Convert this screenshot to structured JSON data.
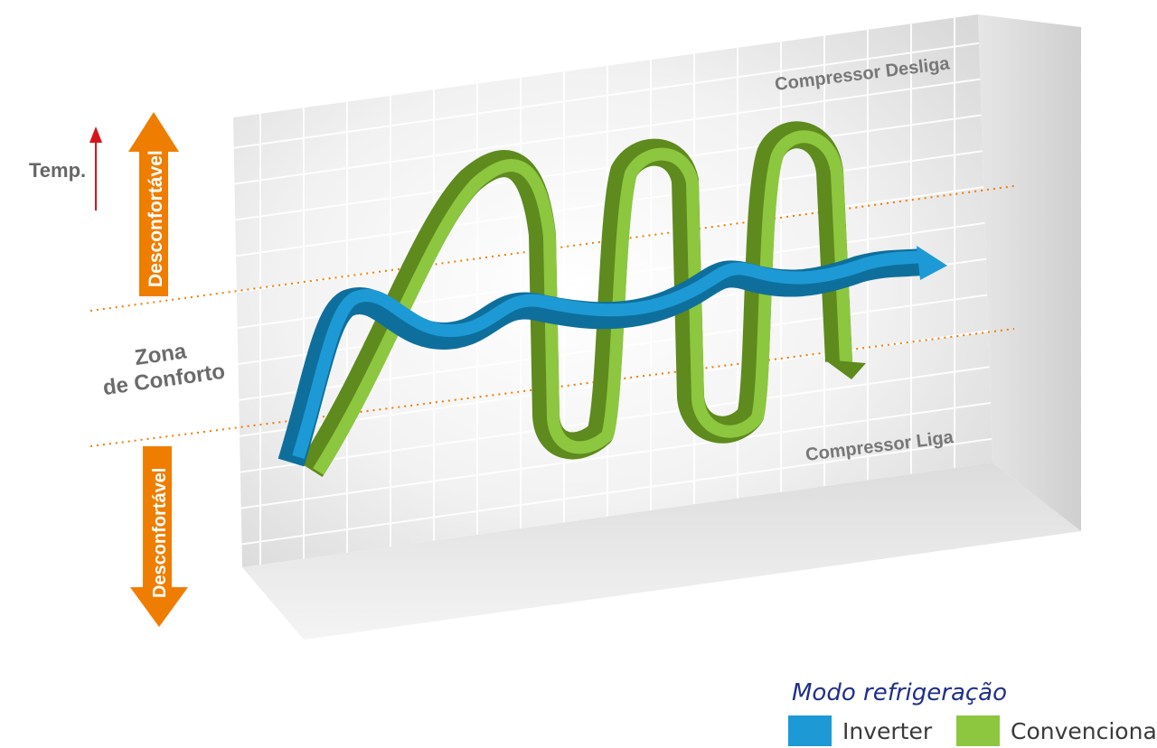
{
  "labels": {
    "temp": "Temp.",
    "uncomfortable_top": "Desconfortável",
    "uncomfortable_bottom": "Desconfortável",
    "comfort_line1": "Zona",
    "comfort_line2": "de Conforto",
    "compressor_off": "Compressor Desliga",
    "compressor_on": "Compressor Liga"
  },
  "legend": {
    "title": "Modo refrigeração",
    "items": [
      {
        "label": "Inverter",
        "color": "#1d9ad6"
      },
      {
        "label": "Convencional",
        "color": "#8dc63f"
      }
    ]
  },
  "colors": {
    "orange": "#ef7d00",
    "inverter": "#1d9ad6",
    "inverter_dark": "#0f6f9c",
    "conventional": "#8dc63f",
    "conventional_dark": "#5e8a1e",
    "temp_arrow": "#d7141a"
  }
}
